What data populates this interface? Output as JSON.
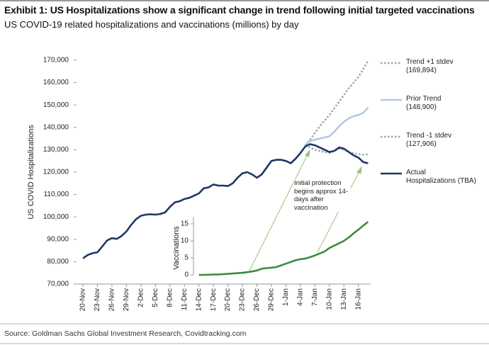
{
  "chart_data": {
    "type": "line",
    "title": "Exhibit 1: US Hospitalizations show a significant change in trend following initial targeted vaccinations",
    "subtitle": "US COVID-19 related hospitalizations and vaccinations (millions) by day",
    "y_label": "US COVID Hospitalizations",
    "y2_label": "Vaccinations",
    "annotation": "Initial protection begins approx 14-days after vaccination",
    "source": "Source: Goldman Sachs Global Investment Research, Covidtracking.com",
    "categories": [
      "20-Nov",
      null,
      null,
      "23-Nov",
      null,
      null,
      "26-Nov",
      null,
      null,
      "29-Nov",
      null,
      null,
      "2-Dec",
      null,
      null,
      "5-Dec",
      null,
      null,
      "8-Dec",
      null,
      null,
      "11-Dec",
      null,
      null,
      "14-Dec",
      null,
      null,
      "17-Dec",
      null,
      null,
      "20-Dec",
      null,
      null,
      "23-Dec",
      null,
      null,
      "26-Dec",
      null,
      null,
      "29-Dec",
      null,
      null,
      "1-Jan",
      null,
      null,
      "4-Jan",
      null,
      null,
      "7-Jan",
      null,
      null,
      "10-Jan",
      null,
      null,
      "13-Jan",
      null,
      null,
      "16-Jan",
      null,
      null
    ],
    "ylim": [
      70000,
      170000
    ],
    "yticks": [
      {
        "value": 70000,
        "label": "70,000"
      },
      {
        "value": 80000,
        "label": "80,000"
      },
      {
        "value": 90000,
        "label": "90,000"
      },
      {
        "value": 100000,
        "label": "100,000"
      },
      {
        "value": 110000,
        "label": "110,000"
      },
      {
        "value": 120000,
        "label": "120,000"
      },
      {
        "value": 130000,
        "label": "130,000"
      },
      {
        "value": 140000,
        "label": "140,000"
      },
      {
        "value": 150000,
        "label": "150,000"
      },
      {
        "value": 160000,
        "label": "160,000"
      },
      {
        "value": 170000,
        "label": "170,000"
      }
    ],
    "y2lim": [
      0,
      17
    ],
    "y2ticks": [
      0,
      5,
      10,
      15
    ],
    "series": [
      {
        "name": "Trend +1 stdev",
        "last_label": "(169,894)",
        "color": "#a6a6a6",
        "dash": true,
        "values": [
          null,
          null,
          null,
          null,
          null,
          null,
          null,
          null,
          null,
          null,
          null,
          null,
          null,
          null,
          null,
          null,
          null,
          null,
          null,
          null,
          null,
          null,
          null,
          null,
          null,
          null,
          null,
          null,
          null,
          null,
          null,
          null,
          null,
          null,
          null,
          null,
          null,
          null,
          null,
          null,
          null,
          null,
          null,
          null,
          null,
          null,
          132000,
          134500,
          137500,
          140500,
          143000,
          145500,
          148500,
          151500,
          154500,
          157500,
          160000,
          162500,
          166000,
          169894
        ]
      },
      {
        "name": "Prior Trend",
        "last_label": "(148,900)",
        "color": "#b4c7e7",
        "dash": false,
        "values": [
          null,
          null,
          null,
          null,
          null,
          null,
          null,
          null,
          null,
          null,
          null,
          null,
          null,
          null,
          null,
          null,
          null,
          null,
          null,
          null,
          null,
          null,
          null,
          null,
          null,
          null,
          null,
          null,
          null,
          null,
          null,
          null,
          null,
          null,
          null,
          null,
          null,
          null,
          null,
          null,
          null,
          null,
          null,
          null,
          null,
          null,
          132000,
          134000,
          134500,
          135000,
          135500,
          136000,
          138000,
          140500,
          142500,
          144000,
          145000,
          145500,
          146500,
          148900
        ]
      },
      {
        "name": "Trend -1 stdev",
        "last_label": "(127,906)",
        "color": "#a6a6a6",
        "dash": true,
        "values": [
          null,
          null,
          null,
          null,
          null,
          null,
          null,
          null,
          null,
          null,
          null,
          null,
          null,
          null,
          null,
          null,
          null,
          null,
          null,
          null,
          null,
          null,
          null,
          null,
          null,
          null,
          null,
          null,
          null,
          null,
          null,
          null,
          null,
          null,
          null,
          null,
          null,
          null,
          null,
          null,
          null,
          null,
          null,
          null,
          null,
          null,
          132000,
          131000,
          130000,
          129500,
          129000,
          128500,
          129500,
          130500,
          130000,
          129000,
          128500,
          128000,
          127800,
          127906
        ]
      },
      {
        "name": "Actual Hospitalizations (TBA)",
        "color": "#1f3864",
        "dash": false,
        "values": [
          81500,
          83000,
          83800,
          84200,
          86800,
          89500,
          90500,
          90200,
          91500,
          93500,
          96500,
          99000,
          100500,
          101000,
          101200,
          101000,
          101300,
          102000,
          104500,
          106500,
          107000,
          108000,
          108500,
          109500,
          110500,
          112800,
          113200,
          114500,
          114000,
          114000,
          113800,
          115000,
          117500,
          119500,
          120000,
          119000,
          117500,
          119000,
          122000,
          125000,
          125500,
          125500,
          125000,
          124000,
          126000,
          128500,
          131500,
          132500,
          132000,
          131000,
          130000,
          129000,
          129500,
          131000,
          130500,
          129000,
          127500,
          126500,
          124500,
          124000
        ]
      },
      {
        "name": "Vaccinations",
        "axis": "y2",
        "show_in_legend": false,
        "color": "#3a8c3f",
        "dash": false,
        "values": [
          null,
          null,
          null,
          null,
          null,
          null,
          null,
          null,
          null,
          null,
          null,
          null,
          null,
          null,
          null,
          null,
          null,
          null,
          null,
          null,
          null,
          null,
          null,
          null,
          0,
          0,
          0.05,
          0.1,
          0.1,
          0.2,
          0.3,
          0.4,
          0.5,
          0.6,
          0.8,
          1.0,
          1.3,
          1.8,
          2.0,
          2.1,
          2.3,
          2.8,
          3.3,
          3.8,
          4.3,
          4.6,
          4.8,
          5.2,
          5.7,
          6.3,
          6.9,
          7.9,
          8.6,
          9.3,
          10.0,
          11.0,
          12.2,
          13.3,
          14.5,
          15.6
        ]
      }
    ]
  }
}
